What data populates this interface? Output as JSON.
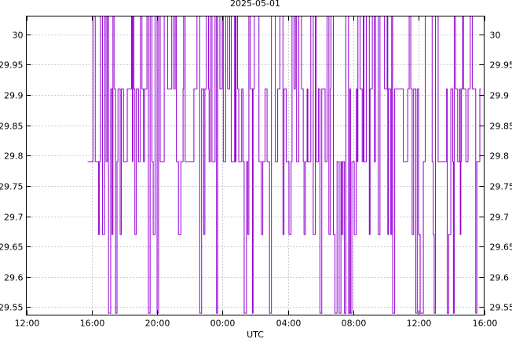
{
  "chart_data": {
    "type": "line",
    "title": "2025-05-01",
    "xlabel": "UTC",
    "ylabel": "",
    "line_color": "#9400d3",
    "grid": true,
    "grid_style": "dotted",
    "right_axis_mirrors_left": true,
    "x_ticks": [
      "12:00",
      "16:00",
      "20:00",
      "00:00",
      "04:00",
      "08:00",
      "12:00",
      "16:00"
    ],
    "xlim_hours": [
      0,
      28
    ],
    "y_ticks": [
      29.55,
      29.6,
      29.65,
      29.7,
      29.75,
      29.8,
      29.85,
      29.9,
      29.95,
      30
    ],
    "y_tick_labels": [
      "29.55",
      "29.6",
      "29.65",
      "29.7",
      "29.75",
      "29.8",
      "29.85",
      "29.9",
      "29.95",
      "30"
    ],
    "ylim": [
      29.537,
      30.03
    ],
    "series": [
      {
        "name": "",
        "level_values": [
          29.54,
          29.67,
          29.79,
          29.91,
          30.03
        ],
        "data_start_hour": 3.75,
        "data_end_hour": 27.8,
        "description": "rapidly oscillating step signal between discrete levels"
      }
    ]
  }
}
